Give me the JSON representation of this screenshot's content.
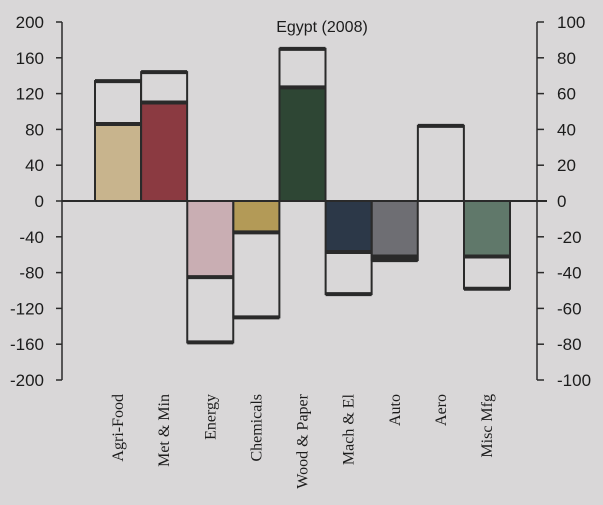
{
  "chart_data": {
    "type": "bar",
    "title": "Egypt (2008)",
    "categories": [
      "Agri-Food",
      "Met & Min",
      "Energy",
      "Chemicals",
      "Wood & Paper",
      "Mach & El",
      "Auto",
      "Aero",
      "Misc Mfg"
    ],
    "series": [
      {
        "axis": "left",
        "color_key": "category",
        "values": [
          86,
          110,
          -85,
          -35,
          127,
          -57,
          -62,
          0,
          -62
        ]
      },
      {
        "axis": "right",
        "values": [
          67,
          72,
          -79,
          -65,
          85,
          -52,
          -33,
          42,
          -49
        ]
      }
    ],
    "colors": [
      "#c8b48d",
      "#8b3a41",
      "#c9aeb3",
      "#b39a57",
      "#2e4634",
      "#2c3848",
      "#6e6e73",
      "#ffffff",
      "#60786a"
    ],
    "outline_color": "#2a2a2a",
    "left_axis": {
      "min": -200,
      "max": 200,
      "ticks": [
        "200",
        "160",
        "120",
        "80",
        "40",
        "0",
        "-40",
        "-80",
        "-120",
        "-160",
        "-200"
      ]
    },
    "right_axis": {
      "min": -100,
      "max": 100,
      "ticks": [
        "100",
        "80",
        "60",
        "40",
        "20",
        "0",
        "-20",
        "-40",
        "-60",
        "-80",
        "-100"
      ]
    },
    "legend": "none",
    "grid": false
  }
}
